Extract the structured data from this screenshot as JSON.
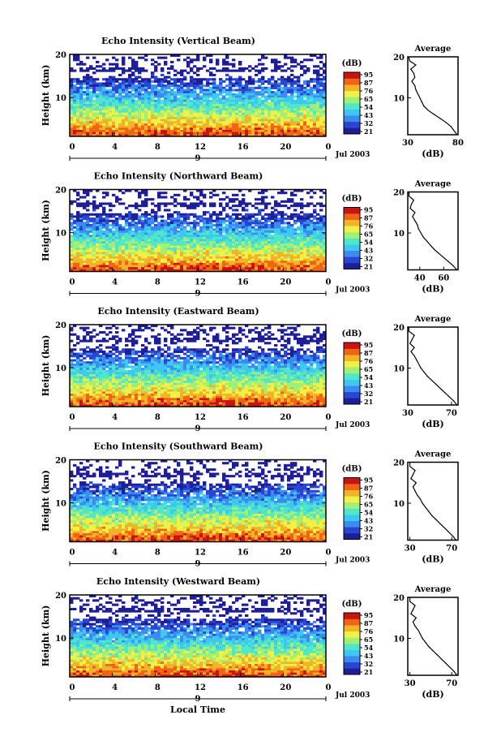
{
  "x_axis_label": "Local Time",
  "colorbar": {
    "unit": "(dB)",
    "ticks": [
      "95",
      "87",
      "76",
      "65",
      "54",
      "43",
      "32",
      "21"
    ],
    "colors": [
      "#1e1e96",
      "#2846d2",
      "#3c8cf0",
      "#3cc8f0",
      "#50e6c8",
      "#a0f078",
      "#f0f046",
      "#f0b428",
      "#f06414",
      "#c81414"
    ]
  },
  "chart_data": [
    {
      "type": "heatmap",
      "title": "Echo Intensity (Vertical Beam)",
      "ylabel": "Height (km)",
      "y_ticks": [
        "20",
        "10"
      ],
      "x_ticks": [
        "0",
        "4",
        "8",
        "12",
        "16",
        "20",
        "0"
      ],
      "day_marker": "9",
      "date_label": "Jul 2003",
      "xlim": [
        0,
        24
      ],
      "ylim": [
        1,
        20
      ],
      "profile": {
        "title": "Average",
        "xlabel": "(dB)",
        "x_ticks": [
          "30",
          "80"
        ],
        "xlim": [
          30,
          80
        ],
        "y_ticks": [
          "20",
          "10"
        ],
        "ylim": [
          1,
          20
        ],
        "height": [
          1,
          2,
          3,
          4,
          5,
          6,
          7,
          8,
          9,
          10,
          11,
          12,
          13,
          14,
          15,
          16,
          17,
          18,
          19,
          20
        ],
        "value": [
          79,
          76,
          73,
          68,
          62,
          56,
          50,
          46,
          44,
          42,
          40,
          38,
          37,
          34,
          37,
          36,
          33,
          38,
          32,
          31
        ]
      }
    },
    {
      "type": "heatmap",
      "title": "Echo Intensity (Northward Beam)",
      "ylabel": "Height (km)",
      "y_ticks": [
        "20",
        "10"
      ],
      "x_ticks": [
        "0",
        "4",
        "8",
        "12",
        "16",
        "20",
        "0"
      ],
      "day_marker": "9",
      "date_label": "Jul 2003",
      "xlim": [
        0,
        24
      ],
      "ylim": [
        1,
        20
      ],
      "profile": {
        "title": "Average",
        "xlabel": "(dB)",
        "x_ticks": [
          "40",
          "60"
        ],
        "xlim": [
          30,
          72
        ],
        "y_ticks": [
          "20",
          "10"
        ],
        "ylim": [
          1,
          20
        ],
        "height": [
          1,
          2,
          3,
          4,
          5,
          6,
          7,
          8,
          9,
          10,
          11,
          12,
          13,
          14,
          15,
          16,
          17,
          18,
          19,
          20
        ],
        "value": [
          71,
          68,
          64,
          60,
          56,
          52,
          49,
          46,
          43,
          41,
          39,
          38,
          36,
          34,
          36,
          32,
          33,
          35,
          31,
          31
        ]
      }
    },
    {
      "type": "heatmap",
      "title": "Echo Intensity (Eastward Beam)",
      "ylabel": "Height (km)",
      "y_ticks": [
        "20",
        "10"
      ],
      "x_ticks": [
        "0",
        "4",
        "8",
        "12",
        "16",
        "20",
        "0"
      ],
      "day_marker": "9",
      "date_label": "Jul 2003",
      "xlim": [
        0,
        24
      ],
      "ylim": [
        1,
        20
      ],
      "profile": {
        "title": "Average",
        "xlabel": "(dB)",
        "x_ticks": [
          "30",
          "70"
        ],
        "xlim": [
          30,
          76
        ],
        "y_ticks": [
          "20",
          "10"
        ],
        "ylim": [
          1,
          20
        ],
        "height": [
          1,
          2,
          3,
          4,
          5,
          6,
          7,
          8,
          9,
          10,
          11,
          12,
          13,
          14,
          15,
          16,
          17,
          18,
          19,
          20
        ],
        "value": [
          75,
          72,
          68,
          64,
          60,
          56,
          52,
          48,
          45,
          42,
          40,
          38,
          36,
          33,
          36,
          32,
          34,
          36,
          31,
          31
        ]
      }
    },
    {
      "type": "heatmap",
      "title": "Echo Intensity (Southward Beam)",
      "ylabel": "Height (km)",
      "y_ticks": [
        "20",
        "10"
      ],
      "x_ticks": [
        "0",
        "4",
        "8",
        "12",
        "16",
        "20",
        "0"
      ],
      "day_marker": "9",
      "date_label": "Jul 2003",
      "xlim": [
        0,
        24
      ],
      "ylim": [
        1,
        20
      ],
      "profile": {
        "title": "Average",
        "xlabel": "(dB)",
        "x_ticks": [
          "30",
          "70"
        ],
        "xlim": [
          28,
          76
        ],
        "y_ticks": [
          "20",
          "10"
        ],
        "ylim": [
          1,
          20
        ],
        "height": [
          1,
          2,
          3,
          4,
          5,
          6,
          7,
          8,
          9,
          10,
          11,
          12,
          13,
          14,
          15,
          16,
          17,
          18,
          19,
          20
        ],
        "value": [
          74,
          71,
          67,
          63,
          59,
          55,
          51,
          48,
          45,
          42,
          40,
          37,
          35,
          33,
          36,
          31,
          33,
          35,
          30,
          30
        ]
      }
    },
    {
      "type": "heatmap",
      "title": "Echo Intensity (Westward Beam)",
      "ylabel": "Height (km)",
      "y_ticks": [
        "20",
        "10"
      ],
      "x_ticks": [
        "0",
        "4",
        "8",
        "12",
        "16",
        "20",
        "0"
      ],
      "day_marker": "9",
      "date_label": "Jul 2003",
      "xlim": [
        0,
        24
      ],
      "ylim": [
        1,
        20
      ],
      "profile": {
        "title": "Average",
        "xlabel": "(dB)",
        "x_ticks": [
          "30",
          "70"
        ],
        "xlim": [
          28,
          76
        ],
        "y_ticks": [
          "20",
          "10"
        ],
        "ylim": [
          1,
          20
        ],
        "height": [
          1,
          2,
          3,
          4,
          5,
          6,
          7,
          8,
          9,
          10,
          11,
          12,
          13,
          14,
          15,
          16,
          17,
          18,
          19,
          20
        ],
        "value": [
          75,
          72,
          68,
          64,
          60,
          56,
          52,
          48,
          45,
          42,
          40,
          38,
          35,
          33,
          36,
          31,
          33,
          35,
          30,
          30
        ]
      }
    }
  ]
}
